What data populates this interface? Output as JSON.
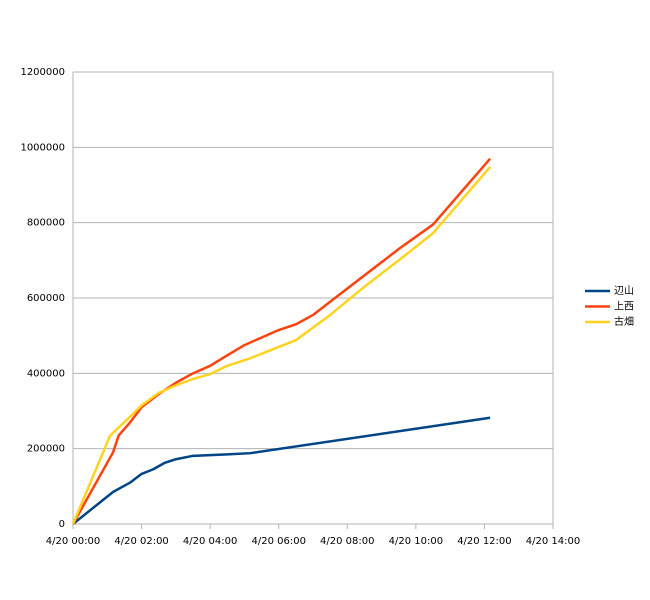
{
  "chart_data": {
    "type": "line",
    "series": [
      {
        "name": "辺山",
        "color": "#004586",
        "x": [
          "4/20 00:00",
          "4/20 01:10",
          "4/20 01:40",
          "4/20 02:00",
          "4/20 02:20",
          "4/20 02:40",
          "4/20 03:00",
          "4/20 03:30",
          "4/20 04:00",
          "4/20 04:30",
          "4/20 05:10",
          "4/20 12:10"
        ],
        "values": [
          0,
          85000,
          110000,
          133000,
          145000,
          162000,
          172000,
          181000,
          183000,
          185000,
          188000,
          282000
        ]
      },
      {
        "name": "上西",
        "color": "#ff420e",
        "x": [
          "4/20 00:00",
          "4/20 01:10",
          "4/20 01:20",
          "4/20 01:40",
          "4/20 02:00",
          "4/20 02:30",
          "4/20 03:00",
          "4/20 03:30",
          "4/20 04:00",
          "4/20 04:30",
          "4/20 05:00",
          "4/20 06:00",
          "4/20 06:30",
          "4/20 07:00",
          "4/20 07:30",
          "4/20 08:30",
          "4/20 09:30",
          "4/20 10:30",
          "4/20 12:10"
        ],
        "values": [
          0,
          190000,
          235000,
          270000,
          310000,
          345000,
          375000,
          400000,
          420000,
          448000,
          475000,
          515000,
          530000,
          555000,
          590000,
          660000,
          730000,
          795000,
          970000
        ]
      },
      {
        "name": "古畑",
        "color": "#ffd320",
        "x": [
          "4/20 00:00",
          "4/20 01:05",
          "4/20 01:40",
          "4/20 02:00",
          "4/20 02:30",
          "4/20 03:00",
          "4/20 03:30",
          "4/20 04:00",
          "4/20 04:30",
          "4/20 05:10",
          "4/20 06:00",
          "4/20 06:30",
          "4/20 07:30",
          "4/20 08:30",
          "4/20 09:30",
          "4/20 10:30",
          "4/20 12:10"
        ],
        "values": [
          0,
          235000,
          285000,
          315000,
          348000,
          368000,
          385000,
          398000,
          420000,
          440000,
          470000,
          488000,
          555000,
          630000,
          700000,
          772000,
          948000
        ]
      }
    ],
    "xlim": [
      "4/20 00:00",
      "4/20 14:00"
    ],
    "xticks": [
      "4/20 00:00",
      "4/20 02:00",
      "4/20 04:00",
      "4/20 06:00",
      "4/20 08:00",
      "4/20 10:00",
      "4/20 12:00",
      "4/20 14:00"
    ],
    "ylim": [
      0,
      1200000
    ],
    "yticks": [
      0,
      200000,
      400000,
      600000,
      800000,
      1000000,
      1200000
    ],
    "grid": true,
    "legend": "right"
  }
}
